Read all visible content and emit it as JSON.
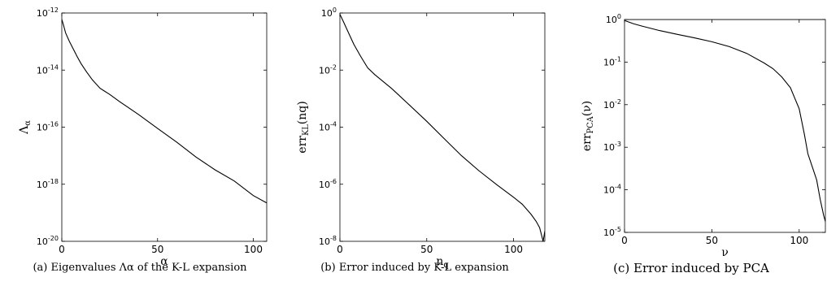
{
  "chart_data": [
    {
      "type": "line",
      "yscale": "log",
      "title": "",
      "xlabel": "α",
      "ylabel": "Λα",
      "xlim": [
        0,
        107
      ],
      "ylim": [
        1e-20,
        1e-12
      ],
      "x_ticks": [
        "0",
        "50",
        "100"
      ],
      "y_ticks": [
        "10-20",
        "10-18",
        "10-16",
        "10-14",
        "10-12"
      ],
      "grid": false,
      "series": [
        {
          "x": [
            0,
            1,
            2,
            4,
            6,
            8,
            10,
            13,
            16,
            20,
            25,
            30,
            40,
            50,
            60,
            70,
            80,
            90,
            100,
            107
          ],
          "y": [
            6e-13,
            3.5e-13,
            2e-13,
            1e-13,
            5.5e-14,
            3e-14,
            1.7e-14,
            8.5e-15,
            4.5e-15,
            2.3e-15,
            1.4e-15,
            8e-16,
            2.8e-16,
            9e-17,
            3e-17,
            9e-18,
            3.2e-18,
            1.3e-18,
            4e-19,
            2.2e-19
          ]
        }
      ],
      "caption": "(a) Eigenvalues Λα of the K-L expansion"
    },
    {
      "type": "line",
      "yscale": "log",
      "title": "",
      "xlabel": "nq",
      "ylabel": "errKL(nq)",
      "xlim": [
        0,
        118
      ],
      "ylim": [
        1e-08,
        1
      ],
      "x_ticks": [
        "0",
        "50",
        "100"
      ],
      "y_ticks": [
        "10-8",
        "10-6",
        "10-4",
        "10-2",
        "100"
      ],
      "grid": false,
      "series": [
        {
          "x": [
            0,
            2,
            5,
            8,
            12,
            16,
            20,
            30,
            40,
            50,
            60,
            70,
            80,
            90,
            100,
            105,
            110,
            113,
            115,
            117,
            118
          ],
          "y": [
            0.9,
            0.5,
            0.2,
            0.08,
            0.03,
            0.012,
            0.007,
            0.0022,
            0.0006,
            0.00016,
            4e-05,
            1e-05,
            3e-06,
            1e-06,
            3.5e-07,
            2e-07,
            9e-08,
            5e-08,
            3e-08,
            1e-08,
            2.3e-08
          ]
        }
      ],
      "caption": "(b) Error induced by K-L expansion"
    },
    {
      "type": "line",
      "yscale": "log",
      "title": "",
      "xlabel": "ν",
      "ylabel": "errPCA(ν)",
      "xlim": [
        0,
        115
      ],
      "ylim": [
        1e-05,
        1
      ],
      "x_ticks": [
        "0",
        "50",
        "100"
      ],
      "y_ticks": [
        "10-5",
        "10-4",
        "10-3",
        "10-2",
        "10-1",
        "100"
      ],
      "grid": false,
      "series": [
        {
          "x": [
            0,
            115
          ],
          "y": [
            1.0,
            1.0
          ]
        },
        {
          "x": [
            0,
            5,
            10,
            20,
            30,
            40,
            50,
            60,
            70,
            80,
            85,
            90,
            95,
            100,
            103,
            105,
            107,
            108,
            110,
            112,
            114,
            115
          ],
          "y": [
            0.95,
            0.8,
            0.7,
            0.55,
            0.45,
            0.37,
            0.3,
            0.23,
            0.16,
            0.095,
            0.07,
            0.045,
            0.025,
            0.008,
            0.002,
            0.0007,
            0.0004,
            0.0003,
            0.00017,
            6e-05,
            2.5e-05,
            1.8e-05
          ]
        }
      ],
      "caption": "(c) Error induced by PCA"
    }
  ]
}
